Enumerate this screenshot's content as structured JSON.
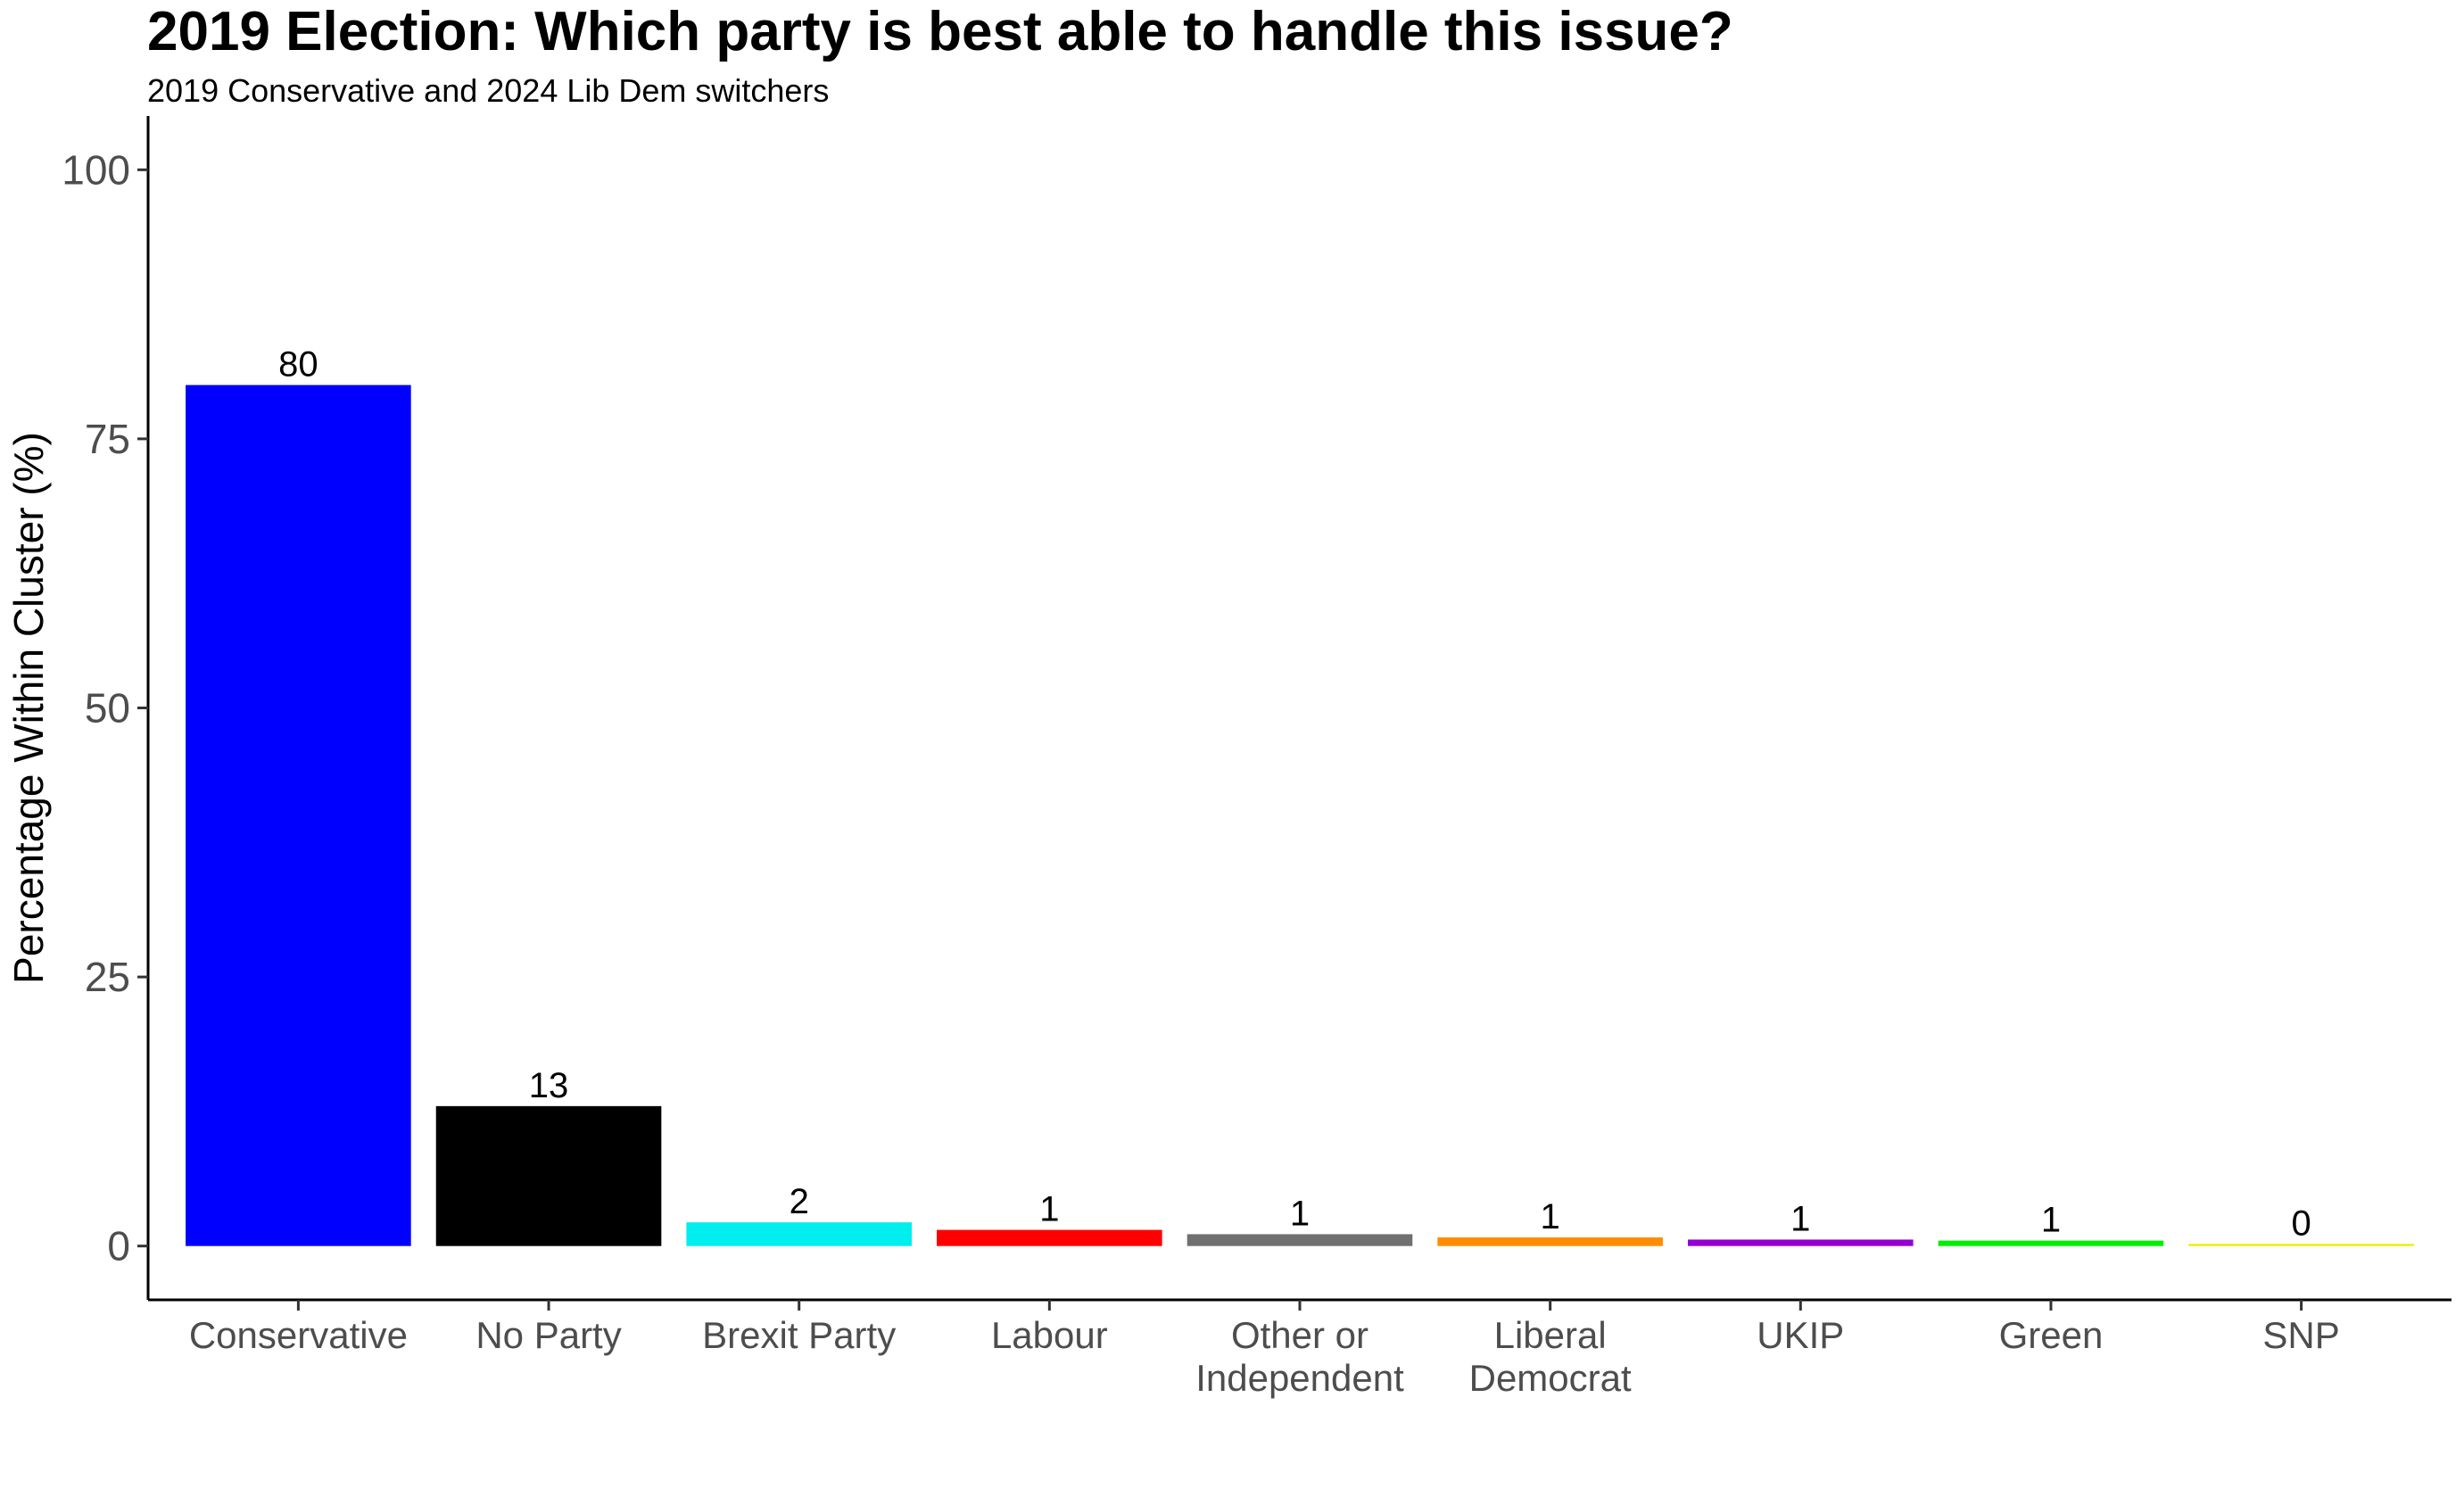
{
  "chart_data": {
    "type": "bar",
    "title": "2019 Election: Which party is best able to handle this issue?",
    "subtitle": "2019 Conservative and 2024 Lib Dem switchers",
    "xlabel": "",
    "ylabel": "Percentage Within Cluster (%)",
    "ylim": [
      -5,
      105
    ],
    "yticks": [
      0,
      25,
      50,
      75,
      100
    ],
    "grid": false,
    "legend": "none",
    "categories": [
      [
        "Conservative"
      ],
      [
        "No Party"
      ],
      [
        "Brexit Party"
      ],
      [
        "Labour"
      ],
      [
        "Other or",
        "Independent"
      ],
      [
        "Liberal",
        "Democrat"
      ],
      [
        "UKIP"
      ],
      [
        "Green"
      ],
      [
        "SNP"
      ]
    ],
    "values": [
      80,
      13,
      2.2,
      1.5,
      1.1,
      0.8,
      0.6,
      0.5,
      0.2
    ],
    "value_labels": [
      "80",
      "13",
      "2",
      "1",
      "1",
      "1",
      "1",
      "1",
      "0"
    ],
    "colors": [
      "#0000ff",
      "#000000",
      "#00eeee",
      "#ff0000",
      "#707070",
      "#ff8c00",
      "#9400d3",
      "#00ee00",
      "#eeee00"
    ]
  }
}
